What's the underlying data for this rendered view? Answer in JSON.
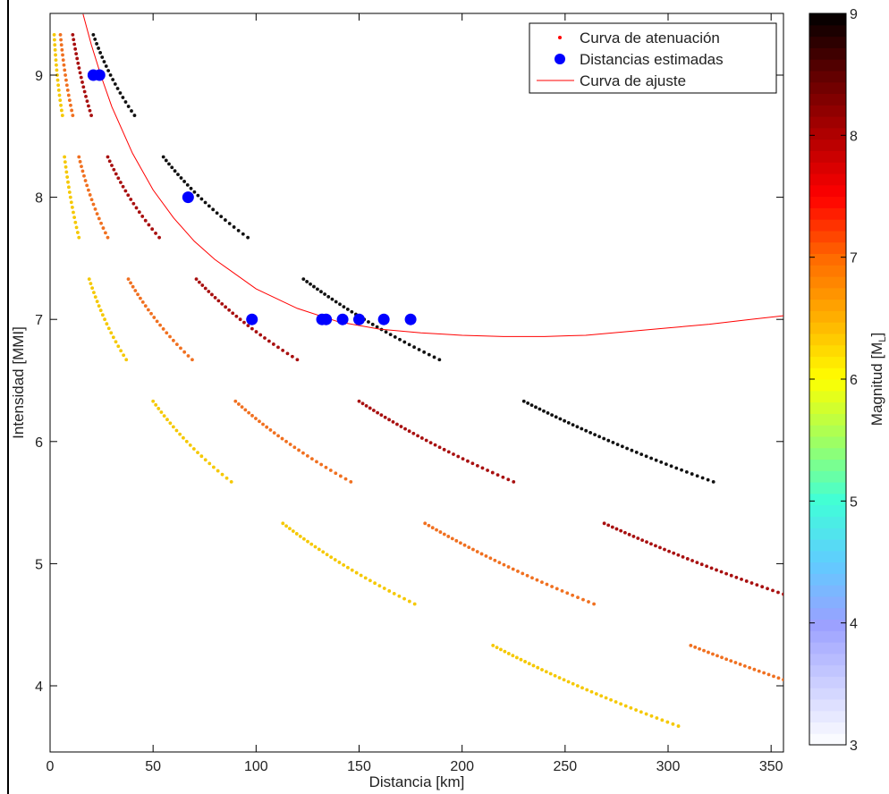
{
  "chart_data": {
    "type": "scatter",
    "title": "",
    "xlabel": "Distancia [km]",
    "ylabel": "Intensidad [MMI]",
    "xlim": [
      0,
      356
    ],
    "ylim": [
      3.5,
      9.5
    ],
    "xticks": [
      "0",
      "50",
      "100",
      "150",
      "200",
      "250",
      "300",
      "350"
    ],
    "yticks": [
      "4",
      "5",
      "6",
      "7",
      "8",
      "9"
    ],
    "grid": false,
    "legend": {
      "position": "top-right",
      "entries": [
        {
          "label": "Curva de atenuación",
          "marker": "small-dot",
          "color": "#ff0000"
        },
        {
          "label": "Distancias estimadas",
          "marker": "large-dot",
          "color": "#0000ff"
        },
        {
          "label": "Curva de ajuste",
          "marker": "line",
          "color": "#ff0000"
        }
      ]
    },
    "colorbar": {
      "label": "Magnitud [M",
      "label_sub": "L",
      "label_end": "]",
      "range": [
        3,
        9
      ],
      "ticks": [
        "3",
        "4",
        "5",
        "6",
        "7",
        "8",
        "9"
      ],
      "colormap": "hot-jet",
      "stops": [
        [
          3.0,
          "#ffffff"
        ],
        [
          4.0,
          "#9aa0ff"
        ],
        [
          4.5,
          "#60ccff"
        ],
        [
          5.0,
          "#40ffd8"
        ],
        [
          5.5,
          "#a0ff60"
        ],
        [
          6.0,
          "#ffff00"
        ],
        [
          6.5,
          "#ffb000"
        ],
        [
          7.0,
          "#ff6a00"
        ],
        [
          7.5,
          "#ff0000"
        ],
        [
          8.0,
          "#b00000"
        ],
        [
          8.5,
          "#600000"
        ],
        [
          9.0,
          "#000000"
        ]
      ]
    },
    "attenuation_series": [
      {
        "magnitude": 6.0,
        "color": "#f5c800",
        "segments": [
          [
            2,
            9.33,
            6,
            8.67
          ],
          [
            7,
            8.33,
            14,
            7.67
          ],
          [
            19,
            7.33,
            37,
            6.67
          ],
          [
            50,
            6.33,
            88,
            5.67
          ],
          [
            113,
            5.33,
            177,
            4.67
          ],
          [
            215,
            4.33,
            305,
            3.67
          ]
        ]
      },
      {
        "magnitude": 6.75,
        "color": "#f07020",
        "segments": [
          [
            5,
            9.33,
            11,
            8.67
          ],
          [
            14,
            8.33,
            28,
            7.67
          ],
          [
            38,
            7.33,
            69,
            6.67
          ],
          [
            90,
            6.33,
            146,
            5.67
          ],
          [
            182,
            5.33,
            264,
            4.67
          ],
          [
            311,
            4.33,
            356,
            4.05
          ]
        ]
      },
      {
        "magnitude": 8.0,
        "color": "#a81010",
        "segments": [
          [
            11,
            9.33,
            20,
            8.67
          ],
          [
            28,
            8.33,
            53,
            7.67
          ],
          [
            71,
            7.33,
            120,
            6.67
          ],
          [
            150,
            6.33,
            225,
            5.67
          ],
          [
            269,
            5.33,
            356,
            4.75
          ]
        ]
      },
      {
        "magnitude": 9.0,
        "color": "#111111",
        "segments": [
          [
            21,
            9.33,
            41,
            8.67
          ],
          [
            55,
            8.33,
            96,
            7.67
          ],
          [
            123,
            7.33,
            189,
            6.67
          ],
          [
            230,
            6.33,
            322,
            5.67
          ]
        ]
      }
    ],
    "estimated_distances": {
      "color": "#0000ff",
      "x": [
        21,
        24,
        67,
        98,
        132,
        134,
        142,
        150,
        162,
        175
      ],
      "y": [
        9,
        9,
        8,
        7,
        7,
        7,
        7,
        7,
        7,
        7
      ]
    },
    "fit_curve": {
      "color": "#ff0000",
      "x": [
        16,
        20,
        25,
        30,
        40,
        50,
        60,
        70,
        80,
        100,
        120,
        140,
        160,
        180,
        200,
        220,
        240,
        260,
        280,
        300,
        320,
        340,
        356
      ],
      "y": [
        9.5,
        9.25,
        8.98,
        8.74,
        8.36,
        8.06,
        7.83,
        7.64,
        7.49,
        7.25,
        7.09,
        6.98,
        6.92,
        6.89,
        6.87,
        6.86,
        6.86,
        6.87,
        6.9,
        6.93,
        6.96,
        7.0,
        7.03
      ]
    }
  }
}
